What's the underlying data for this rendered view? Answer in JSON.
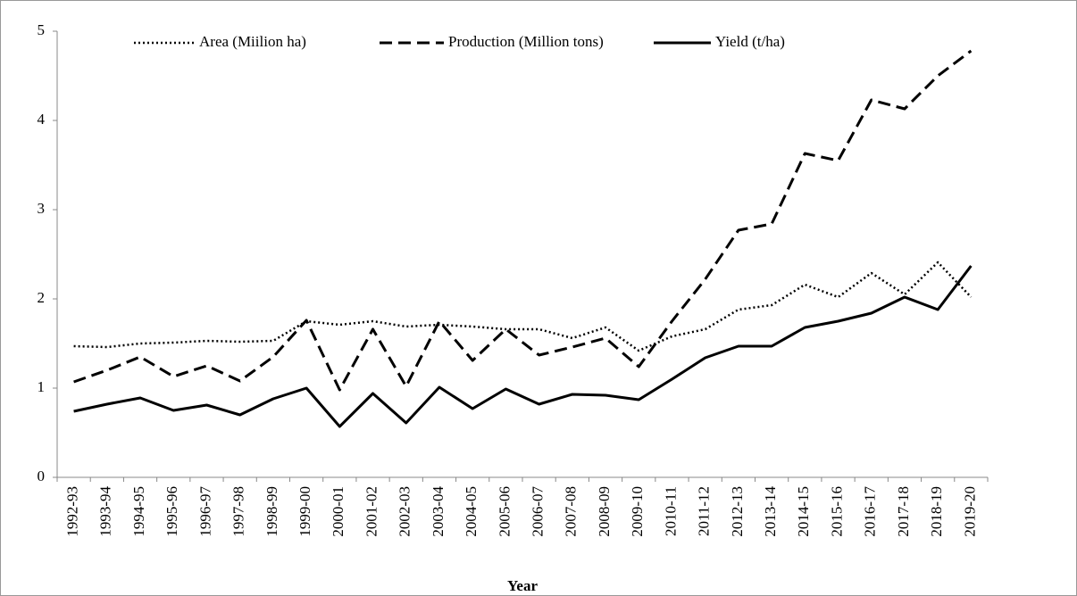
{
  "chart_data": {
    "type": "line",
    "xlabel": "Year",
    "categories": [
      "1992-93",
      "1993-94",
      "1994-95",
      "1995-96",
      "1996-97",
      "1997-98",
      "1998-99",
      "1999-00",
      "2000-01",
      "2001-02",
      "2002-03",
      "2003-04",
      "2004-05",
      "2005-06",
      "2006-07",
      "2007-08",
      "2008-09",
      "2009-10",
      "2010-11",
      "2011-12",
      "2012-13",
      "2013-14",
      "2014-15",
      "2015-16",
      "2016-17",
      "2017-18",
      "2018-19",
      "2019-20"
    ],
    "series": [
      {
        "name": "Area (Miilion ha)",
        "color": "#000000",
        "style": "dotted",
        "values": [
          1.47,
          1.46,
          1.5,
          1.51,
          1.53,
          1.52,
          1.53,
          1.75,
          1.71,
          1.75,
          1.69,
          1.71,
          1.69,
          1.66,
          1.66,
          1.56,
          1.68,
          1.42,
          1.58,
          1.66,
          1.88,
          1.93,
          2.16,
          2.02,
          2.29,
          2.05,
          2.41,
          2.02
        ]
      },
      {
        "name": "Production (Million tons)",
        "color": "#000000",
        "style": "dashed",
        "values": [
          1.07,
          1.2,
          1.35,
          1.13,
          1.25,
          1.08,
          1.35,
          1.76,
          0.98,
          1.66,
          1.02,
          1.75,
          1.31,
          1.66,
          1.37,
          1.46,
          1.56,
          1.24,
          1.75,
          2.22,
          2.77,
          2.84,
          3.63,
          3.55,
          4.23,
          4.13,
          4.5,
          4.78
        ]
      },
      {
        "name": "Yield (t/ha)",
        "color": "#000000",
        "style": "solid",
        "values": [
          0.74,
          0.82,
          0.89,
          0.75,
          0.81,
          0.7,
          0.88,
          1.0,
          0.57,
          0.94,
          0.61,
          1.01,
          0.77,
          0.99,
          0.82,
          0.93,
          0.92,
          0.87,
          1.1,
          1.34,
          1.47,
          1.47,
          1.68,
          1.75,
          1.84,
          2.02,
          1.88,
          2.37
        ]
      }
    ],
    "ylim": [
      0,
      5
    ],
    "yticks": [
      0,
      1,
      2,
      3,
      4,
      5
    ],
    "legend": "top"
  }
}
